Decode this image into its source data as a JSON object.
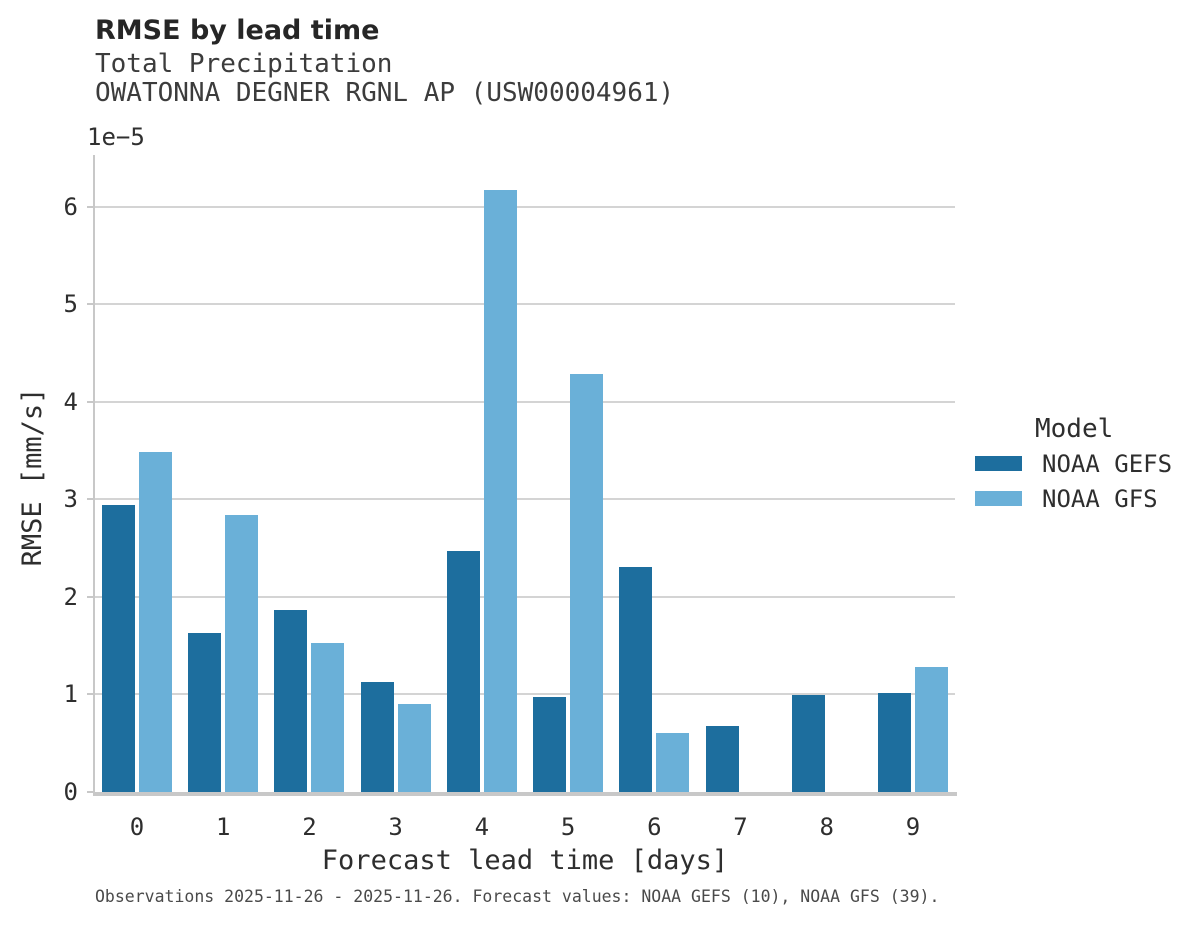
{
  "header": {
    "title": "RMSE by lead time",
    "subtitle_variable": "Total Precipitation",
    "subtitle_station": "OWATONNA DEGNER RGNL AP (USW00004961)"
  },
  "axes": {
    "xlabel": "Forecast lead time [days]",
    "ylabel": "RMSE [mm/s]",
    "y_offset_label": "1e−5",
    "xticklabels": [
      "0",
      "1",
      "2",
      "3",
      "4",
      "5",
      "6",
      "7",
      "8",
      "9"
    ],
    "yticklabels": [
      "0",
      "1",
      "2",
      "3",
      "4",
      "5",
      "6"
    ]
  },
  "legend": {
    "title": "Model",
    "items": [
      {
        "label": "NOAA GEFS",
        "color": "#1d6e9e"
      },
      {
        "label": "NOAA GFS",
        "color": "#6ab0d8"
      }
    ]
  },
  "footer": {
    "note": "Observations 2025-11-26 - 2025-11-26. Forecast values: NOAA GEFS (10), NOAA GFS (39)."
  },
  "colors": {
    "gefs": "#1d6e9e",
    "gfs": "#6ab0d8",
    "gridline": "#d4d4d4",
    "spine": "#c8c8c8",
    "background": "#ffffff"
  },
  "chart_data": {
    "type": "bar",
    "title": "RMSE by lead time",
    "subtitle": [
      "Total Precipitation",
      "OWATONNA DEGNER RGNL AP (USW00004961)"
    ],
    "xlabel": "Forecast lead time [days]",
    "ylabel": "RMSE [mm/s]",
    "y_scale_offset": "1e-5",
    "categories": [
      0,
      1,
      2,
      3,
      4,
      5,
      6,
      7,
      8,
      9
    ],
    "series": [
      {
        "name": "NOAA GEFS",
        "color": "#1d6e9e",
        "values": [
          2.94e-05,
          1.63e-05,
          1.87e-05,
          1.13e-05,
          2.47e-05,
          9.7e-06,
          2.31e-05,
          6.8e-06,
          9.9e-06,
          1.02e-05
        ]
      },
      {
        "name": "NOAA GFS",
        "color": "#6ab0d8",
        "values": [
          3.49e-05,
          2.84e-05,
          1.53e-05,
          9e-06,
          6.17e-05,
          4.29e-05,
          6e-06,
          null,
          null,
          1.28e-05
        ]
      }
    ],
    "ylim": [
      0,
      6.53e-05
    ],
    "yticks": [
      0,
      1e-05,
      2e-05,
      3e-05,
      4e-05,
      5e-05,
      6e-05
    ],
    "grid": "horizontal",
    "legend_title": "Model",
    "legend_position": "right-outside"
  }
}
